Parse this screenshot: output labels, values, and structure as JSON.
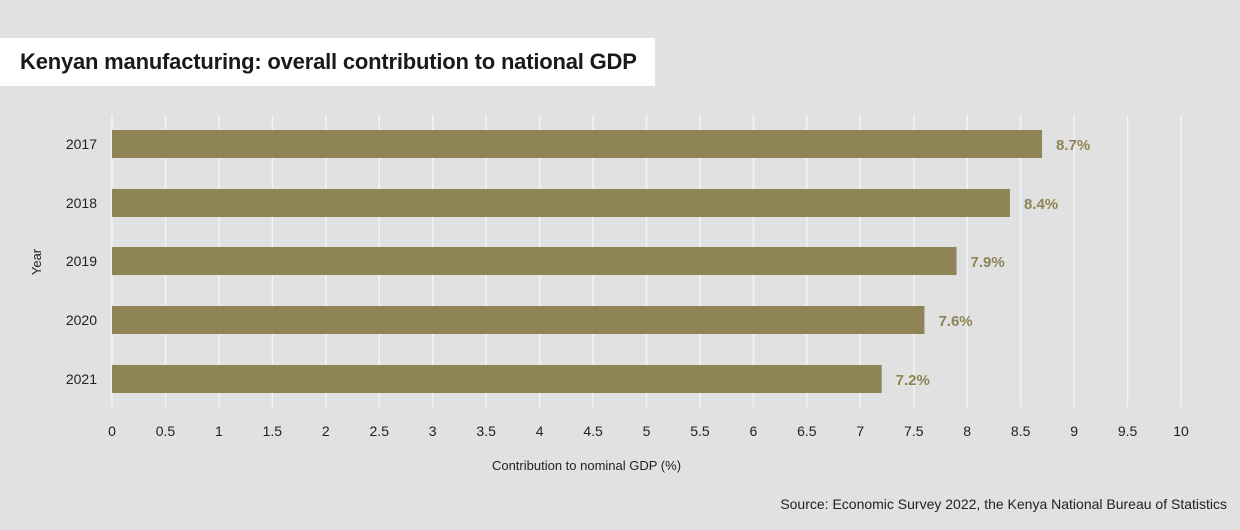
{
  "title": "Kenyan manufacturing: overall contribution to national GDP",
  "source": "Source: Economic Survey 2022, the Kenya National Bureau of Statistics",
  "colors": {
    "bar": "#8e8456",
    "label": "#8e8456",
    "background": "#e1e1e1",
    "grid": "#f4f4f4"
  },
  "chart_data": {
    "type": "bar",
    "orientation": "horizontal",
    "title": "Kenyan manufacturing: overall contribution to national GDP",
    "categories": [
      "2017",
      "2018",
      "2019",
      "2020",
      "2021"
    ],
    "values": [
      8.7,
      8.4,
      7.9,
      7.6,
      7.2
    ],
    "value_labels": [
      "8.7%",
      "8.4%",
      "7.9%",
      "7.6%",
      "7.2%"
    ],
    "xlabel": "Contribution to nominal GDP (%)",
    "ylabel": "Year",
    "xlim": [
      0,
      10
    ],
    "xticks": [
      "0",
      "0.5",
      "1",
      "1.5",
      "2",
      "2.5",
      "3",
      "3.5",
      "4",
      "4.5",
      "5",
      "5.5",
      "6",
      "6.5",
      "7",
      "7.5",
      "8",
      "8.5",
      "9",
      "9.5",
      "10"
    ],
    "grid": "vertical"
  }
}
